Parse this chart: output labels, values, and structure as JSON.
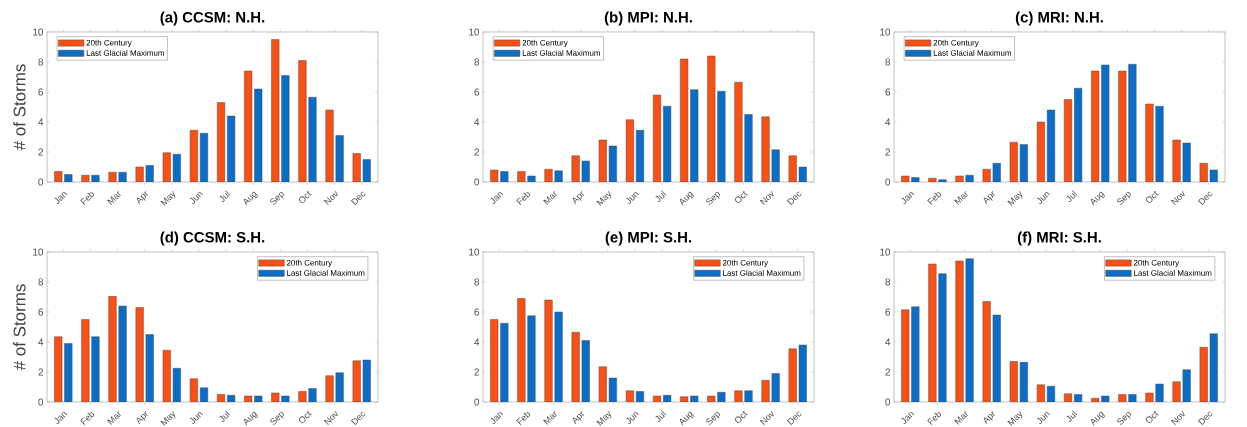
{
  "chart_data": [
    {
      "type": "bar",
      "title": "(a) CCSM: N.H.",
      "ylabel": "# of Storms",
      "categories": [
        "Jan",
        "Feb",
        "Mar",
        "Apr",
        "May",
        "Jun",
        "Jul",
        "Aug",
        "Sep",
        "Oct",
        "Nov",
        "Dec"
      ],
      "ylim": [
        0,
        10
      ],
      "yticks": [
        0,
        2,
        4,
        6,
        8,
        10
      ],
      "legend": "top left",
      "series": [
        {
          "name": "20th Century",
          "color": "#fa5014",
          "values": [
            0.7,
            0.45,
            0.65,
            1.0,
            1.95,
            3.45,
            5.3,
            7.4,
            9.5,
            8.1,
            4.8,
            1.9
          ]
        },
        {
          "name": "Last Glacial Maximum",
          "color": "#0a6ec8",
          "values": [
            0.5,
            0.45,
            0.65,
            1.1,
            1.85,
            3.25,
            4.4,
            6.2,
            7.1,
            5.65,
            3.1,
            1.5
          ]
        }
      ]
    },
    {
      "type": "bar",
      "title": "(b) MPI: N.H.",
      "categories": [
        "Jan",
        "Feb",
        "Mar",
        "Apr",
        "May",
        "Jun",
        "Jul",
        "Aug",
        "Sep",
        "Oct",
        "Nov",
        "Dec"
      ],
      "ylim": [
        0,
        10
      ],
      "yticks": [
        0,
        2,
        4,
        6,
        8,
        10
      ],
      "legend": "top left",
      "series": [
        {
          "name": "20th Century",
          "color": "#fa5014",
          "values": [
            0.8,
            0.7,
            0.85,
            1.75,
            2.8,
            4.15,
            5.8,
            8.2,
            8.4,
            6.65,
            4.35,
            1.75
          ]
        },
        {
          "name": "Last Glacial Maximum",
          "color": "#0a6ec8",
          "values": [
            0.7,
            0.4,
            0.75,
            1.4,
            2.4,
            3.45,
            5.05,
            6.15,
            6.05,
            4.5,
            2.15,
            1.0
          ]
        }
      ]
    },
    {
      "type": "bar",
      "title": "(c) MRI: N.H.",
      "categories": [
        "Jan",
        "Feb",
        "Mar",
        "Apr",
        "May",
        "Jun",
        "Jul",
        "Aug",
        "Sep",
        "Oct",
        "Nov",
        "Dec"
      ],
      "ylim": [
        0,
        10
      ],
      "yticks": [
        0,
        2,
        4,
        6,
        8,
        10
      ],
      "legend": "top left",
      "series": [
        {
          "name": "20th Century",
          "color": "#fa5014",
          "values": [
            0.4,
            0.25,
            0.4,
            0.85,
            2.65,
            4.0,
            5.5,
            7.4,
            7.4,
            5.2,
            2.8,
            1.25
          ]
        },
        {
          "name": "Last Glacial Maximum",
          "color": "#0a6ec8",
          "values": [
            0.3,
            0.15,
            0.45,
            1.25,
            2.5,
            4.8,
            6.25,
            7.8,
            7.85,
            5.05,
            2.6,
            0.8
          ]
        }
      ]
    },
    {
      "type": "bar",
      "title": "(d) CCSM: S.H.",
      "ylabel": "# of Storms",
      "categories": [
        "Jan",
        "Feb",
        "Mar",
        "Apr",
        "May",
        "Jun",
        "Jul",
        "Aug",
        "Sep",
        "Oct",
        "Nov",
        "Dec"
      ],
      "ylim": [
        0,
        10
      ],
      "yticks": [
        0,
        2,
        4,
        6,
        8,
        10
      ],
      "legend": "top right",
      "series": [
        {
          "name": "20th Century",
          "color": "#fa5014",
          "values": [
            4.35,
            5.5,
            7.05,
            6.3,
            3.45,
            1.55,
            0.5,
            0.4,
            0.6,
            0.7,
            1.75,
            2.75
          ]
        },
        {
          "name": "Last Glacial Maximum",
          "color": "#0a6ec8",
          "values": [
            3.9,
            4.35,
            6.4,
            4.5,
            2.25,
            0.95,
            0.45,
            0.4,
            0.4,
            0.9,
            1.95,
            2.8
          ]
        }
      ]
    },
    {
      "type": "bar",
      "title": "(e) MPI: S.H.",
      "categories": [
        "Jan",
        "Feb",
        "Mar",
        "Apr",
        "May",
        "Jun",
        "Jul",
        "Aug",
        "Sep",
        "Oct",
        "Nov",
        "Dec"
      ],
      "ylim": [
        0,
        10
      ],
      "yticks": [
        0,
        2,
        4,
        6,
        8,
        10
      ],
      "legend": "top right",
      "series": [
        {
          "name": "20th Century",
          "color": "#fa5014",
          "values": [
            5.5,
            6.9,
            6.8,
            4.65,
            2.35,
            0.75,
            0.4,
            0.35,
            0.4,
            0.75,
            1.45,
            3.55
          ]
        },
        {
          "name": "Last Glacial Maximum",
          "color": "#0a6ec8",
          "values": [
            5.25,
            5.75,
            6.0,
            4.1,
            1.6,
            0.7,
            0.45,
            0.4,
            0.65,
            0.75,
            1.9,
            3.8
          ]
        }
      ]
    },
    {
      "type": "bar",
      "title": "(f) MRI: S.H.",
      "categories": [
        "Jan",
        "Feb",
        "Mar",
        "Apr",
        "May",
        "Jun",
        "Jul",
        "Aug",
        "Sep",
        "Oct",
        "Nov",
        "Dec"
      ],
      "ylim": [
        0,
        10
      ],
      "yticks": [
        0,
        2,
        4,
        6,
        8,
        10
      ],
      "legend": "top right",
      "series": [
        {
          "name": "20th Century",
          "color": "#fa5014",
          "values": [
            6.15,
            9.2,
            9.4,
            6.7,
            2.7,
            1.15,
            0.55,
            0.25,
            0.5,
            0.6,
            1.35,
            3.65
          ]
        },
        {
          "name": "Last Glacial Maximum",
          "color": "#0a6ec8",
          "values": [
            6.35,
            8.55,
            9.55,
            5.8,
            2.65,
            1.05,
            0.5,
            0.4,
            0.5,
            1.2,
            2.15,
            4.55
          ]
        }
      ]
    }
  ]
}
